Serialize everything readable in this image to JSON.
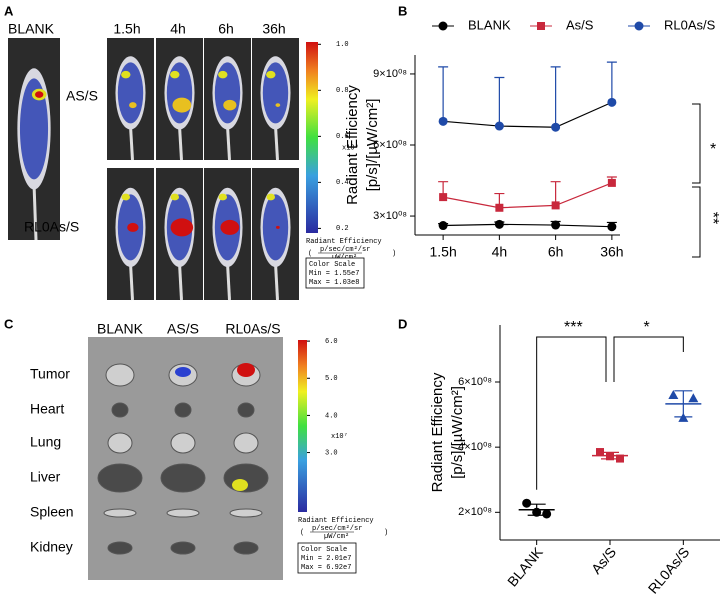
{
  "panels": [
    "A",
    "B",
    "C",
    "D"
  ],
  "panel_a": {
    "column_labels": [
      "BLANK",
      "1.5h",
      "4h",
      "6h",
      "36h"
    ],
    "row_labels": [
      "AS/S",
      "RL0As/S"
    ],
    "colorbar": {
      "lim": [
        0.18,
        1.01
      ],
      "ticks": [
        {
          "value": 1,
          "label": "1.0"
        },
        0.8,
        0.6,
        0.4,
        0.2
      ],
      "multiplier": "x10⁸",
      "title": "Radiant Efficiency",
      "unit_top": "p/sec/cm²/sr",
      "unit_bottom": "µW/cm²",
      "scale_title": "Color Scale",
      "min": "Min = 1.55e7",
      "max": "Max = 1.03e8"
    }
  },
  "panel_c": {
    "column_labels": [
      "BLANK",
      "AS/S",
      "RL0As/S"
    ],
    "organs": [
      "Tumor",
      "Heart",
      "Lung",
      "Liver",
      "Spleen",
      "Kidney"
    ],
    "colorbar": {
      "lim": [
        1.4,
        6.03
      ],
      "ticks": [
        {
          "value": 6,
          "label": "6.0"
        },
        {
          "value": 5,
          "label": "5.0"
        },
        {
          "value": 4,
          "label": "4.0"
        },
        {
          "value": 3,
          "label": "3.0"
        }
      ],
      "multiplier": "x10⁷",
      "title": "Radiant Efficiency",
      "unit_top": "p/sec/cm²/sr",
      "unit_bottom": "µW/cm²",
      "scale_title": "Color Scale",
      "min": "Min = 2.01e7",
      "max": "Max = 6.92e7"
    }
  },
  "chart_data": [
    {
      "type": "line",
      "ylabel": [
        "Radiant Efficiency",
        "[p/s]/[µW/cm²]"
      ],
      "categories": [
        "1.5h",
        "4h",
        "6h",
        "36h"
      ],
      "series": [
        {
          "name": "BLANK",
          "color": "#000000",
          "marker": "circle",
          "values": [
            260000000,
            265000000,
            262000000,
            255000000
          ],
          "errors": [
            8000000,
            10000000,
            15000000,
            18000000
          ]
        },
        {
          "name": "As/S",
          "color": "#c8283c",
          "marker": "square",
          "values": [
            380000000,
            335000000,
            345000000,
            440000000
          ],
          "errors": [
            65000000,
            60000000,
            100000000,
            25000000
          ]
        },
        {
          "name": "RL0As/S",
          "color": "#1f4aa8",
          "marker": "circle",
          "values": [
            700000000,
            680000000,
            675000000,
            780000000
          ],
          "errors": [
            230000000,
            205000000,
            255000000,
            170000000
          ]
        }
      ],
      "ylim": [
        220000000,
        980000000
      ],
      "yticks": [
        {
          "value": 300000000,
          "label": "3×10⁰⁸"
        },
        {
          "value": 600000000,
          "label": "6×10⁰⁸"
        },
        {
          "value": 900000000,
          "label": "9×10⁰⁸"
        }
      ],
      "annotations": [
        "*",
        "**"
      ]
    },
    {
      "type": "scatter",
      "ylabel": [
        "Radiant Efficiency",
        "[p/s]/[µW/cm²]"
      ],
      "categories": [
        "BLANK",
        "As/S",
        "RL0As/S"
      ],
      "series": [
        {
          "name": "BLANK",
          "color": "#000000",
          "marker": "circle",
          "values": [
            228000000,
            195000000,
            200000000
          ],
          "mean": 208000000,
          "sd": 17000000
        },
        {
          "name": "As/S",
          "color": "#c8283c",
          "marker": "square",
          "values": [
            385000000,
            365000000,
            372000000
          ],
          "mean": 374000000,
          "sd": 10000000
        },
        {
          "name": "RL0As/S",
          "color": "#1f4aa8",
          "marker": "triangle",
          "values": [
            560000000,
            550000000,
            490000000
          ],
          "mean": 533000000,
          "sd": 40000000
        }
      ],
      "ylim": [
        115000000,
        775000000
      ],
      "yticks": [
        {
          "value": 200000000,
          "label": "2×10⁰⁸"
        },
        {
          "value": 400000000,
          "label": "4×10⁰⁸"
        },
        {
          "value": 600000000,
          "label": "6×10⁰⁸"
        }
      ],
      "annotations": [
        "***",
        "*"
      ]
    }
  ]
}
